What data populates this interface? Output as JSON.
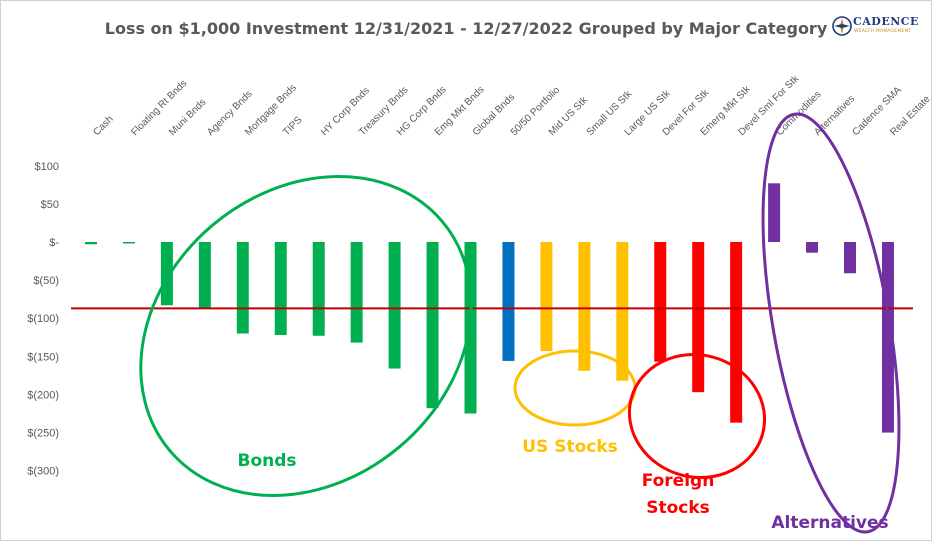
{
  "title": "Loss on $1,000 Investment 12/31/2021  - 12/27/2022  Grouped by Major Category",
  "logo": {
    "name": "CADENCE",
    "tagline": "WEALTH MANAGEMENT",
    "icon": "compass-logo-icon",
    "primary_color": "#1f3a7a",
    "accent_color": "#c88a22"
  },
  "chart_data": {
    "type": "bar",
    "title": "Loss on $1,000 Investment 12/31/2021  - 12/27/2022  Grouped by Major Category",
    "categories": [
      "Cash",
      "Floating Rt Bnds",
      "Muni Bnds",
      "Agency Bnds",
      "Mortgage Bnds",
      "TIPS",
      "HY Corp Bnds",
      "Treasury Bnds",
      "HG Corp Bnds",
      "Emg Mkt Bnds",
      "Global Bnds",
      "50/50 Portfolio",
      "Mid US Stk",
      "Small US Stk",
      "Large US Stk",
      "Devel For Stk",
      "Emerg Mkt Stk",
      "Devel Sml For Stk",
      "Commodities",
      "Alternatives",
      "Cadence SMA",
      "Real Estate"
    ],
    "values": [
      -3,
      -1,
      -83,
      -86,
      -120,
      -122,
      -123,
      -132,
      -166,
      -218,
      -225,
      -156,
      -143,
      -169,
      -182,
      -157,
      -197,
      -237,
      77,
      -14,
      -41,
      -250
    ],
    "colors": [
      "#00b050",
      "#00b050",
      "#00b050",
      "#00b050",
      "#00b050",
      "#00b050",
      "#00b050",
      "#00b050",
      "#00b050",
      "#00b050",
      "#00b050",
      "#0070c0",
      "#ffc000",
      "#ffc000",
      "#ffc000",
      "#ff0000",
      "#ff0000",
      "#ff0000",
      "#7030a0",
      "#7030a0",
      "#7030a0",
      "#7030a0"
    ],
    "ylim": [
      -300,
      100
    ],
    "yticks": [
      100,
      50,
      0,
      -50,
      -100,
      -150,
      -200,
      -250,
      -300
    ],
    "ytick_labels": [
      "$100",
      "$50",
      "$-",
      "$(50)",
      "$(100)",
      "$(150)",
      "$(200)",
      "$(250)",
      "$(300)"
    ],
    "xaxis_position": "top",
    "reference_line": {
      "value": -87,
      "color": "#c00000"
    },
    "grid": false,
    "groups": [
      {
        "label": "Bonds",
        "color": "#00b050",
        "members": [
          "Floating Rt Bnds",
          "Muni Bnds",
          "Agency Bnds",
          "Mortgage Bnds",
          "TIPS",
          "HY Corp Bnds",
          "Treasury Bnds",
          "HG Corp Bnds",
          "Emg Mkt Bnds",
          "Global Bnds"
        ]
      },
      {
        "label": "US Stocks",
        "color": "#ffc000",
        "members": [
          "Mid US Stk",
          "Small US Stk",
          "Large US Stk"
        ]
      },
      {
        "label": "Foreign\nStocks",
        "color": "#ff0000",
        "members": [
          "Devel For Stk",
          "Emerg Mkt Stk",
          "Devel Sml For Stk"
        ]
      },
      {
        "label": "Alternatives",
        "color": "#7030a0",
        "members": [
          "Commodities",
          "Alternatives",
          "Cadence SMA",
          "Real Estate"
        ]
      }
    ]
  }
}
